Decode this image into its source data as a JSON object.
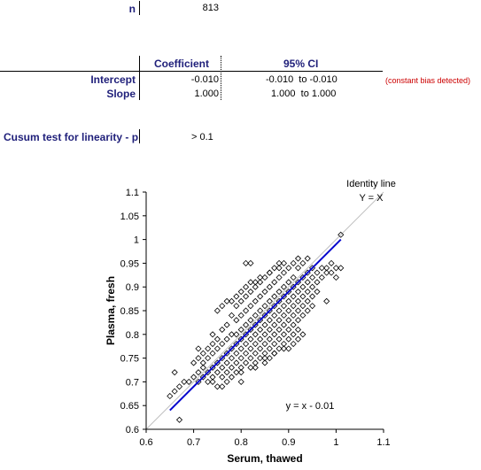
{
  "n_section": {
    "label": "n",
    "value": "813"
  },
  "table": {
    "col_coefficient": "Coefficient",
    "col_ci": "95% CI",
    "rows": [
      {
        "label": "Intercept",
        "coef": "-0.010",
        "ci": "-0.010  to -0.010",
        "note": "(constant bias detected)"
      },
      {
        "label": "Slope",
        "coef": "1.000",
        "ci": "1.000  to 1.000",
        "note": ""
      }
    ]
  },
  "cusum": {
    "label": "Cusum test for linearity - p",
    "value": "> 0.1"
  },
  "chart_data": {
    "type": "scatter",
    "xlabel": "Serum, thawed",
    "ylabel": "Plasma, fresh",
    "xlim": [
      0.6,
      1.1
    ],
    "ylim": [
      0.6,
      1.1
    ],
    "x_ticks": [
      "0.6",
      "0.7",
      "0.8",
      "0.9",
      "1",
      "1.1"
    ],
    "y_ticks": [
      "0.6",
      "0.65",
      "0.7",
      "0.75",
      "0.8",
      "0.85",
      "0.9",
      "0.95",
      "1",
      "1.05",
      "1.1"
    ],
    "identity_label_1": "Identity line",
    "identity_label_2": "Y = X",
    "regression_label": "y = x - 0.01",
    "regression_line": {
      "slope": 1.0,
      "intercept": -0.01,
      "x_range": [
        0.65,
        1.01
      ]
    },
    "colors": {
      "regression": "#0000cc",
      "identity": "#c0c0c0",
      "points": "#000000"
    },
    "points": [
      [
        0.65,
        0.67
      ],
      [
        0.66,
        0.68
      ],
      [
        0.66,
        0.72
      ],
      [
        0.67,
        0.62
      ],
      [
        0.67,
        0.69
      ],
      [
        0.68,
        0.7
      ],
      [
        0.69,
        0.7
      ],
      [
        0.7,
        0.71
      ],
      [
        0.7,
        0.74
      ],
      [
        0.71,
        0.7
      ],
      [
        0.71,
        0.72
      ],
      [
        0.71,
        0.75
      ],
      [
        0.71,
        0.77
      ],
      [
        0.72,
        0.71
      ],
      [
        0.72,
        0.73
      ],
      [
        0.72,
        0.74
      ],
      [
        0.72,
        0.76
      ],
      [
        0.73,
        0.7
      ],
      [
        0.73,
        0.72
      ],
      [
        0.73,
        0.75
      ],
      [
        0.73,
        0.77
      ],
      [
        0.74,
        0.71
      ],
      [
        0.74,
        0.73
      ],
      [
        0.74,
        0.76
      ],
      [
        0.74,
        0.78
      ],
      [
        0.74,
        0.8
      ],
      [
        0.75,
        0.69
      ],
      [
        0.75,
        0.72
      ],
      [
        0.75,
        0.74
      ],
      [
        0.75,
        0.77
      ],
      [
        0.75,
        0.79
      ],
      [
        0.75,
        0.85
      ],
      [
        0.76,
        0.71
      ],
      [
        0.76,
        0.73
      ],
      [
        0.76,
        0.75
      ],
      [
        0.76,
        0.78
      ],
      [
        0.76,
        0.81
      ],
      [
        0.76,
        0.86
      ],
      [
        0.77,
        0.72
      ],
      [
        0.77,
        0.74
      ],
      [
        0.77,
        0.76
      ],
      [
        0.77,
        0.79
      ],
      [
        0.77,
        0.82
      ],
      [
        0.77,
        0.7
      ],
      [
        0.78,
        0.73
      ],
      [
        0.78,
        0.75
      ],
      [
        0.78,
        0.77
      ],
      [
        0.78,
        0.8
      ],
      [
        0.78,
        0.84
      ],
      [
        0.78,
        0.71
      ],
      [
        0.79,
        0.72
      ],
      [
        0.79,
        0.74
      ],
      [
        0.79,
        0.76
      ],
      [
        0.79,
        0.78
      ],
      [
        0.79,
        0.8
      ],
      [
        0.79,
        0.83
      ],
      [
        0.79,
        0.86
      ],
      [
        0.8,
        0.73
      ],
      [
        0.8,
        0.75
      ],
      [
        0.8,
        0.77
      ],
      [
        0.8,
        0.79
      ],
      [
        0.8,
        0.81
      ],
      [
        0.8,
        0.84
      ],
      [
        0.8,
        0.87
      ],
      [
        0.8,
        0.7
      ],
      [
        0.81,
        0.74
      ],
      [
        0.81,
        0.76
      ],
      [
        0.81,
        0.78
      ],
      [
        0.81,
        0.8
      ],
      [
        0.81,
        0.82
      ],
      [
        0.81,
        0.85
      ],
      [
        0.81,
        0.88
      ],
      [
        0.81,
        0.95
      ],
      [
        0.82,
        0.73
      ],
      [
        0.82,
        0.75
      ],
      [
        0.82,
        0.77
      ],
      [
        0.82,
        0.79
      ],
      [
        0.82,
        0.81
      ],
      [
        0.82,
        0.83
      ],
      [
        0.82,
        0.86
      ],
      [
        0.82,
        0.89
      ],
      [
        0.82,
        0.95
      ],
      [
        0.83,
        0.74
      ],
      [
        0.83,
        0.76
      ],
      [
        0.83,
        0.78
      ],
      [
        0.83,
        0.8
      ],
      [
        0.83,
        0.82
      ],
      [
        0.83,
        0.84
      ],
      [
        0.83,
        0.87
      ],
      [
        0.83,
        0.9
      ],
      [
        0.83,
        0.91
      ],
      [
        0.84,
        0.75
      ],
      [
        0.84,
        0.77
      ],
      [
        0.84,
        0.79
      ],
      [
        0.84,
        0.81
      ],
      [
        0.84,
        0.83
      ],
      [
        0.84,
        0.85
      ],
      [
        0.84,
        0.88
      ],
      [
        0.84,
        0.91
      ],
      [
        0.85,
        0.76
      ],
      [
        0.85,
        0.78
      ],
      [
        0.85,
        0.8
      ],
      [
        0.85,
        0.82
      ],
      [
        0.85,
        0.84
      ],
      [
        0.85,
        0.86
      ],
      [
        0.85,
        0.89
      ],
      [
        0.85,
        0.92
      ],
      [
        0.85,
        0.74
      ],
      [
        0.86,
        0.77
      ],
      [
        0.86,
        0.79
      ],
      [
        0.86,
        0.81
      ],
      [
        0.86,
        0.83
      ],
      [
        0.86,
        0.85
      ],
      [
        0.86,
        0.87
      ],
      [
        0.86,
        0.9
      ],
      [
        0.86,
        0.93
      ],
      [
        0.87,
        0.76
      ],
      [
        0.87,
        0.78
      ],
      [
        0.87,
        0.8
      ],
      [
        0.87,
        0.82
      ],
      [
        0.87,
        0.84
      ],
      [
        0.87,
        0.86
      ],
      [
        0.87,
        0.88
      ],
      [
        0.87,
        0.91
      ],
      [
        0.87,
        0.94
      ],
      [
        0.88,
        0.77
      ],
      [
        0.88,
        0.79
      ],
      [
        0.88,
        0.81
      ],
      [
        0.88,
        0.83
      ],
      [
        0.88,
        0.85
      ],
      [
        0.88,
        0.87
      ],
      [
        0.88,
        0.89
      ],
      [
        0.88,
        0.92
      ],
      [
        0.88,
        0.95
      ],
      [
        0.89,
        0.78
      ],
      [
        0.89,
        0.8
      ],
      [
        0.89,
        0.82
      ],
      [
        0.89,
        0.84
      ],
      [
        0.89,
        0.86
      ],
      [
        0.89,
        0.88
      ],
      [
        0.89,
        0.9
      ],
      [
        0.89,
        0.93
      ],
      [
        0.89,
        0.95
      ],
      [
        0.9,
        0.79
      ],
      [
        0.9,
        0.81
      ],
      [
        0.9,
        0.83
      ],
      [
        0.9,
        0.85
      ],
      [
        0.9,
        0.87
      ],
      [
        0.9,
        0.89
      ],
      [
        0.9,
        0.91
      ],
      [
        0.9,
        0.94
      ],
      [
        0.91,
        0.8
      ],
      [
        0.91,
        0.82
      ],
      [
        0.91,
        0.84
      ],
      [
        0.91,
        0.86
      ],
      [
        0.91,
        0.88
      ],
      [
        0.91,
        0.9
      ],
      [
        0.91,
        0.92
      ],
      [
        0.91,
        0.95
      ],
      [
        0.92,
        0.81
      ],
      [
        0.92,
        0.83
      ],
      [
        0.92,
        0.85
      ],
      [
        0.92,
        0.87
      ],
      [
        0.92,
        0.89
      ],
      [
        0.92,
        0.91
      ],
      [
        0.92,
        0.94
      ],
      [
        0.92,
        0.96
      ],
      [
        0.93,
        0.84
      ],
      [
        0.93,
        0.86
      ],
      [
        0.93,
        0.88
      ],
      [
        0.93,
        0.9
      ],
      [
        0.93,
        0.92
      ],
      [
        0.93,
        0.95
      ],
      [
        0.94,
        0.85
      ],
      [
        0.94,
        0.87
      ],
      [
        0.94,
        0.89
      ],
      [
        0.94,
        0.91
      ],
      [
        0.94,
        0.93
      ],
      [
        0.94,
        0.96
      ],
      [
        0.95,
        0.86
      ],
      [
        0.95,
        0.88
      ],
      [
        0.95,
        0.9
      ],
      [
        0.95,
        0.92
      ],
      [
        0.95,
        0.94
      ],
      [
        0.96,
        0.89
      ],
      [
        0.96,
        0.91
      ],
      [
        0.96,
        0.93
      ],
      [
        0.97,
        0.92
      ],
      [
        0.97,
        0.94
      ],
      [
        0.98,
        0.93
      ],
      [
        0.98,
        0.94
      ],
      [
        0.98,
        0.87
      ],
      [
        0.99,
        0.93
      ],
      [
        0.99,
        0.95
      ],
      [
        1.0,
        0.92
      ],
      [
        1.0,
        0.94
      ],
      [
        1.01,
        0.94
      ],
      [
        1.01,
        1.01
      ],
      [
        0.74,
        0.7
      ],
      [
        0.76,
        0.69
      ],
      [
        0.77,
        0.87
      ],
      [
        0.78,
        0.87
      ],
      [
        0.79,
        0.88
      ],
      [
        0.8,
        0.89
      ],
      [
        0.81,
        0.9
      ],
      [
        0.82,
        0.91
      ],
      [
        0.84,
        0.92
      ],
      [
        0.86,
        0.93
      ],
      [
        0.88,
        0.94
      ],
      [
        0.83,
        0.73
      ],
      [
        0.85,
        0.75
      ],
      [
        0.87,
        0.76
      ],
      [
        0.89,
        0.77
      ],
      [
        0.91,
        0.78
      ],
      [
        0.93,
        0.8
      ],
      [
        0.92,
        0.79
      ],
      [
        0.9,
        0.77
      ],
      [
        0.86,
        0.75
      ],
      [
        0.8,
        0.72
      ]
    ]
  }
}
